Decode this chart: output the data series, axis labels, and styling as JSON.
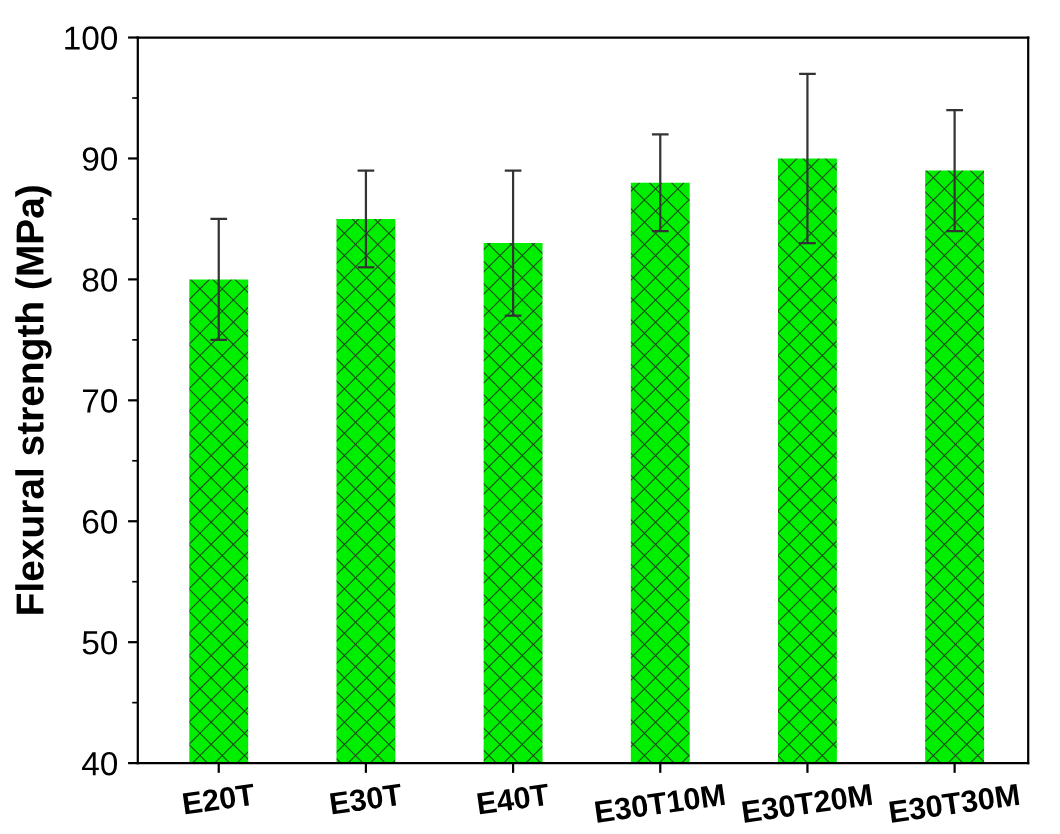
{
  "chart_data": {
    "type": "bar",
    "ylabel": "Flexural strength (MPa)",
    "categories": [
      "E20T",
      "E30T",
      "E40T",
      "E30T10M",
      "E30T20M",
      "E30T30M"
    ],
    "values": [
      80,
      85,
      83,
      88,
      90,
      89
    ],
    "errors": [
      [
        75,
        85
      ],
      [
        81,
        89
      ],
      [
        77,
        89
      ],
      [
        84,
        92
      ],
      [
        83,
        97
      ],
      [
        84,
        94
      ]
    ],
    "color": "#00ee00",
    "ylim": [
      40,
      100
    ],
    "yticks": [
      40,
      50,
      60,
      70,
      80,
      90,
      100
    ],
    "grid": false,
    "legend": false
  }
}
